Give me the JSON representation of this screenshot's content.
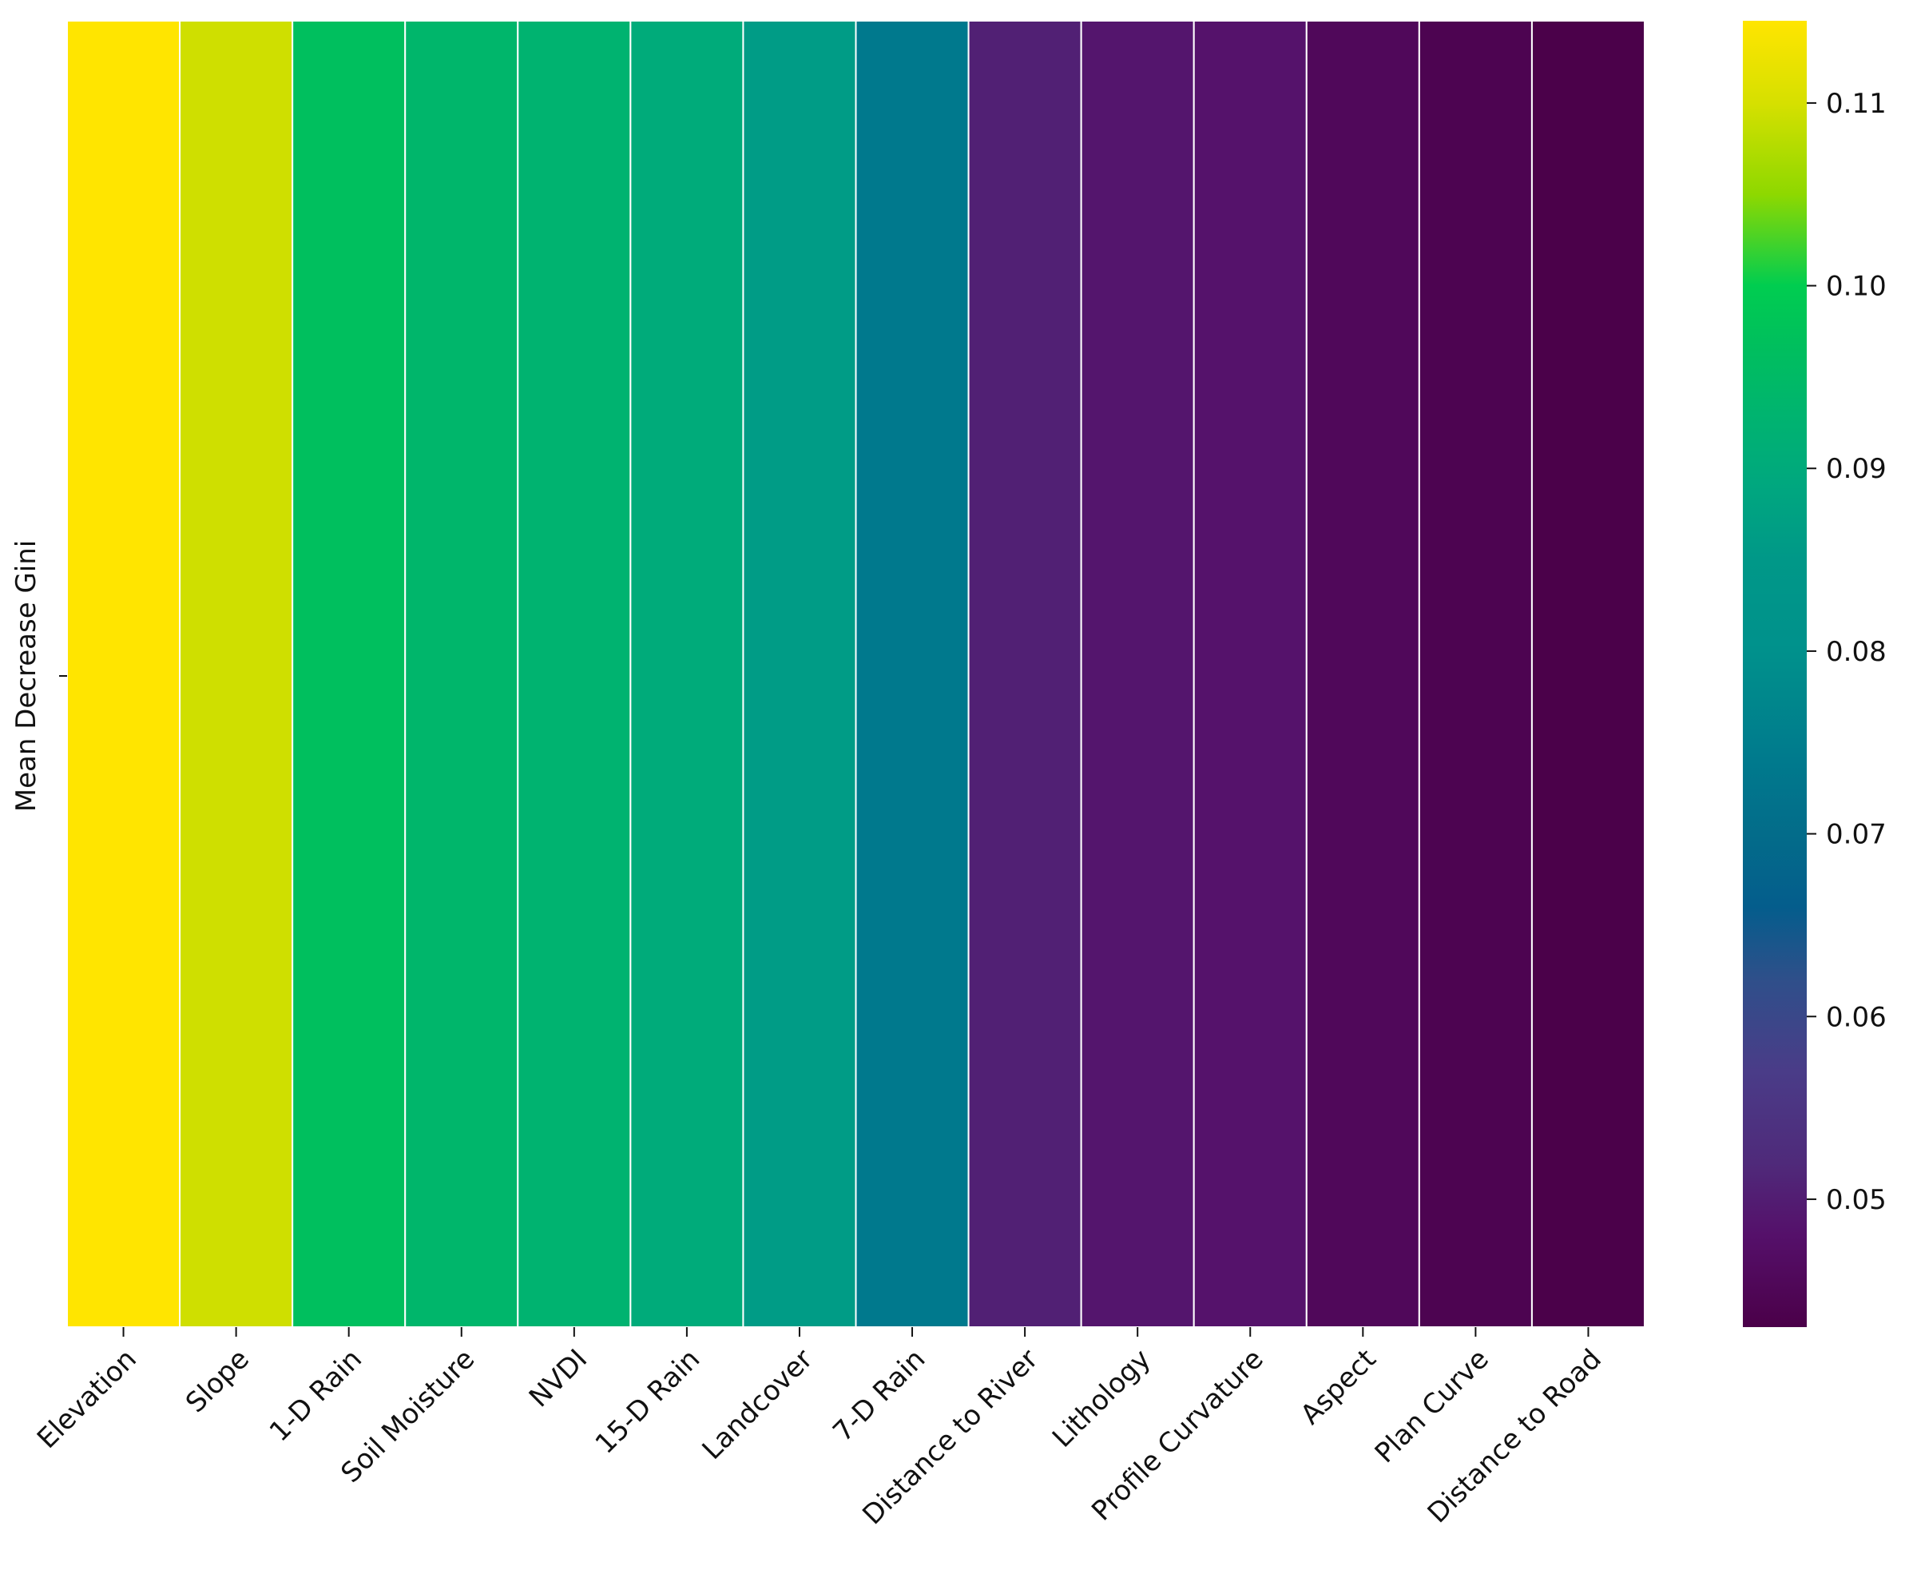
{
  "chart_data": {
    "type": "heatmap",
    "title": "",
    "xlabel": "",
    "ylabel": "Mean Decrease Gini",
    "grid": false,
    "categories": [
      "Elevation",
      "Slope",
      "1-D Rain",
      "Soil Moisture",
      "NVDI",
      "15-D Rain",
      "Landcover",
      "7-D Rain",
      "Distance to River",
      "Lithology",
      "Profile Curvature",
      "Aspect",
      "Plan Curve",
      "Distance to Road"
    ],
    "values": [
      0.1145,
      0.1095,
      0.0965,
      0.0938,
      0.0928,
      0.0903,
      0.086,
      0.0738,
      0.0505,
      0.0488,
      0.0483,
      0.0455,
      0.0442,
      0.0432
    ],
    "colorbar": {
      "range": [
        0.043,
        0.1145
      ],
      "ticks": [
        "0.05",
        "0.06",
        "0.07",
        "0.08",
        "0.09",
        "0.10",
        "0.11"
      ],
      "tick_values": [
        0.05,
        0.06,
        0.07,
        0.08,
        0.09,
        0.1,
        0.11
      ],
      "colormap": [
        [
          0.043,
          "#4b0049"
        ],
        [
          0.048,
          "#55106a"
        ],
        [
          0.052,
          "#4f2a7a"
        ],
        [
          0.057,
          "#4a3c88"
        ],
        [
          0.062,
          "#2f4f8a"
        ],
        [
          0.066,
          "#045d8c"
        ],
        [
          0.07,
          "#036c8a"
        ],
        [
          0.074,
          "#007a8d"
        ],
        [
          0.08,
          "#00918c"
        ],
        [
          0.085,
          "#009888"
        ],
        [
          0.089,
          "#00a77f"
        ],
        [
          0.093,
          "#00b46f"
        ],
        [
          0.097,
          "#00c05c"
        ],
        [
          0.1,
          "#00cd50"
        ],
        [
          0.105,
          "#8ed800"
        ],
        [
          0.11,
          "#d6e000"
        ],
        [
          0.1145,
          "#ffe500"
        ]
      ]
    }
  }
}
